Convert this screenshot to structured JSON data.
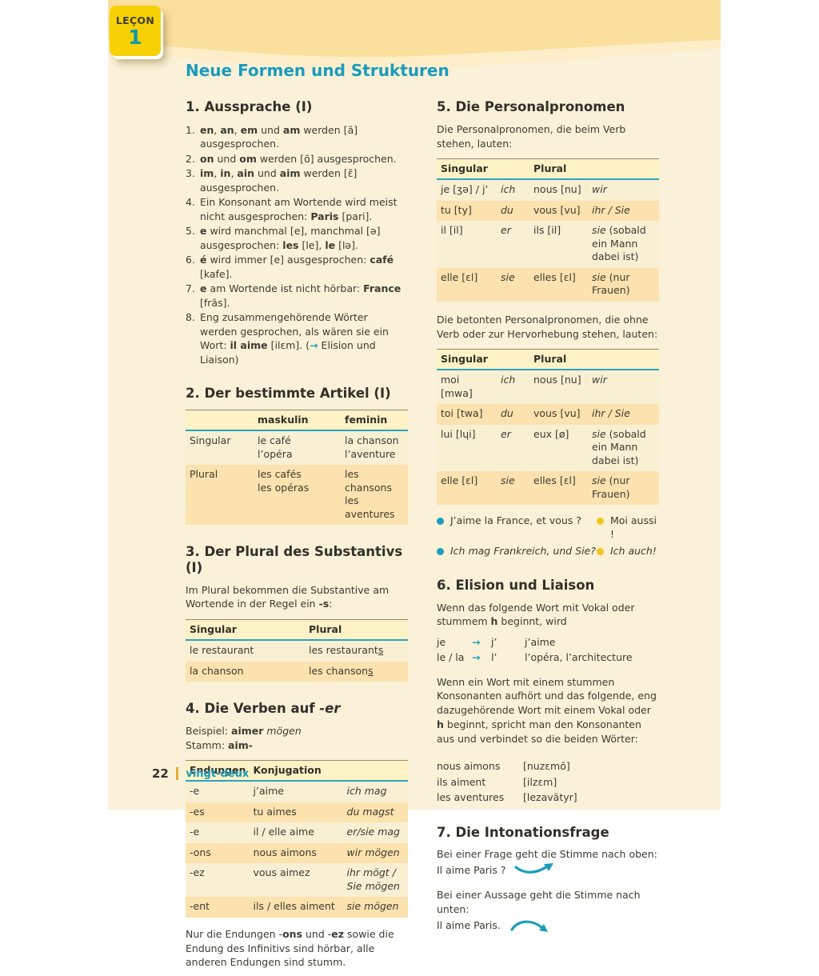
{
  "colors": {
    "page_bg": "#faf1d8",
    "band_dark": "#fbdf9d",
    "band_light": "#fdeec9",
    "tab_yellow": "#f7d104",
    "teal": "#1b9dbb",
    "table_header_bg": "#fdf2c5",
    "row_light": "#f9efd3",
    "row_dark": "#fbe2ae",
    "bullet_blue": "#1b9dbb",
    "bullet_yellow": "#f3c51c",
    "footer_bar": "#e2ae35"
  },
  "icons": {
    "right_arrow": "→"
  },
  "page": {
    "tab": {
      "label": "LEÇON",
      "number": "1"
    },
    "title": "Neue Formen und Strukturen",
    "footer": {
      "number": "22",
      "word": "vingt-deux"
    }
  },
  "s1": {
    "title": "1. Aussprache (I)",
    "items": [
      [
        {
          "t": "en",
          "s": "b"
        },
        {
          "t": ", "
        },
        {
          "t": "an",
          "s": "b"
        },
        {
          "t": ", "
        },
        {
          "t": "em",
          "s": "b"
        },
        {
          "t": " und "
        },
        {
          "t": "am",
          "s": "b"
        },
        {
          "t": " werden [ã] ausgesprochen."
        }
      ],
      [
        {
          "t": "on",
          "s": "b"
        },
        {
          "t": " und "
        },
        {
          "t": "om",
          "s": "b"
        },
        {
          "t": " werden [õ] ausgesprochen."
        }
      ],
      [
        {
          "t": "im",
          "s": "b"
        },
        {
          "t": ", "
        },
        {
          "t": "in",
          "s": "b"
        },
        {
          "t": ", "
        },
        {
          "t": "ain",
          "s": "b"
        },
        {
          "t": " und "
        },
        {
          "t": "aim",
          "s": "b"
        },
        {
          "t": " werden [ɛ̃] ausgesprochen."
        }
      ],
      [
        {
          "t": "Ein Konsonant am Wortende wird meist nicht ausgesprochen: "
        },
        {
          "t": "Paris",
          "s": "b"
        },
        {
          "t": " [pari]."
        }
      ],
      [
        {
          "t": "e",
          "s": "b"
        },
        {
          "t": " wird manchmal [e], manchmal [ə] ausgesprochen: "
        },
        {
          "t": "les",
          "s": "b"
        },
        {
          "t": " [le], "
        },
        {
          "t": "le",
          "s": "b"
        },
        {
          "t": " [lə]."
        }
      ],
      [
        {
          "t": "é",
          "s": "b"
        },
        {
          "t": " wird immer [e] ausgesprochen: "
        },
        {
          "t": "café",
          "s": "b"
        },
        {
          "t": " [kafe]."
        }
      ],
      [
        {
          "t": "e",
          "s": "b"
        },
        {
          "t": " am Wortende ist nicht hörbar: "
        },
        {
          "t": "France",
          "s": "b"
        },
        {
          "t": " [frãs]."
        }
      ],
      [
        {
          "t": "Eng zusammengehörende Wörter werden gesprochen, als wären sie ein Wort: "
        },
        {
          "t": "il aime",
          "s": "b"
        },
        {
          "t": " [ilɛm]. ("
        },
        {
          "t": "→",
          "s": "c"
        },
        {
          "t": " Elision und Liaison)"
        }
      ]
    ]
  },
  "s2": {
    "title": "2. Der bestimmte Artikel (I)",
    "table": {
      "header": [
        "",
        "maskulin",
        "feminin"
      ],
      "rows": [
        [
          "Singular",
          "le café\nl’opéra",
          "la chanson\nl’aventure"
        ],
        [
          "Plural",
          "les cafés\nles opéras",
          "les chansons\nles aventures"
        ]
      ]
    }
  },
  "s3": {
    "title": "3. Der Plural des Substantivs (I)",
    "intro": [
      {
        "t": "Im Plural bekommen die Substantive am Wortende in der Regel ein "
      },
      {
        "t": "-s",
        "s": "b"
      },
      {
        "t": ":"
      }
    ],
    "table": {
      "header": [
        "Singular",
        "Plural"
      ],
      "rows": [
        [
          "le restaurant",
          [
            {
              "t": "les restaurant"
            },
            {
              "t": "s",
              "s": "u"
            }
          ]
        ],
        [
          "la chanson",
          [
            {
              "t": "les chanson"
            },
            {
              "t": "s",
              "s": "u"
            }
          ]
        ]
      ]
    }
  },
  "s4": {
    "title": [
      {
        "t": "4. Die Verben auf "
      },
      {
        "t": "-er",
        "s": "i"
      }
    ],
    "beispiel": [
      {
        "t": "Beispiel: "
      },
      {
        "t": "aimer",
        "s": "b"
      },
      {
        "t": " "
      },
      {
        "t": "mögen",
        "s": "i"
      }
    ],
    "stamm": [
      {
        "t": "Stamm: "
      },
      {
        "t": "aim-",
        "s": "b"
      }
    ],
    "table": {
      "header": [
        "Endungen",
        "Konjugation",
        ""
      ],
      "rows": [
        [
          "-e",
          "j’aime",
          [
            {
              "t": "ich mag",
              "s": "i"
            }
          ]
        ],
        [
          "-es",
          "tu aimes",
          [
            {
              "t": "du magst",
              "s": "i"
            }
          ]
        ],
        [
          "-e",
          "il / elle aime",
          [
            {
              "t": "er/sie mag",
              "s": "i"
            }
          ]
        ],
        [
          "-ons",
          "nous aimons",
          [
            {
              "t": "wir mögen",
              "s": "i"
            }
          ]
        ],
        [
          "-ez",
          "vous aimez",
          [
            {
              "t": "ihr mögt / Sie mögen",
              "s": "i"
            }
          ]
        ],
        [
          "-ent",
          "ils / elles aiment",
          [
            {
              "t": "sie mögen",
              "s": "i"
            }
          ]
        ]
      ]
    },
    "note": [
      {
        "t": "Nur die Endungen -"
      },
      {
        "t": "ons",
        "s": "b"
      },
      {
        "t": " und -"
      },
      {
        "t": "ez",
        "s": "b"
      },
      {
        "t": " sowie die Endung des Infinitivs sind hörbar, alle anderen Endungen sind stumm."
      }
    ]
  },
  "s5": {
    "title": "5. Die Personalpronomen",
    "intro1": "Die Personalpronomen, die beim Verb stehen, lauten:",
    "table1": {
      "header": [
        "Singular",
        "",
        "Plural",
        ""
      ],
      "rows": [
        [
          "je [ʒə] / j’",
          [
            {
              "t": "ich",
              "s": "i"
            }
          ],
          "nous [nu]",
          [
            {
              "t": "wir",
              "s": "i"
            }
          ]
        ],
        [
          "tu [ty]",
          [
            {
              "t": "du",
              "s": "i"
            }
          ],
          "vous [vu]",
          [
            {
              "t": "ihr / Sie",
              "s": "i"
            }
          ]
        ],
        [
          "il [il]",
          [
            {
              "t": "er",
              "s": "i"
            }
          ],
          "ils [il]",
          [
            {
              "t": "sie",
              "s": "i"
            },
            {
              "t": " (sobald ein Mann dabei ist)"
            }
          ]
        ],
        [
          "elle [ɛl]",
          [
            {
              "t": "sie",
              "s": "i"
            }
          ],
          "elles [ɛl]",
          [
            {
              "t": "sie",
              "s": "i"
            },
            {
              "t": " (nur Frauen)"
            }
          ]
        ]
      ]
    },
    "intro2": "Die betonten Personalpronomen, die ohne Verb oder zur Hervorhebung stehen, lauten:",
    "table2": {
      "header": [
        "Singular",
        "",
        "Plural",
        ""
      ],
      "rows": [
        [
          "moi [mwa]",
          [
            {
              "t": "ich",
              "s": "i"
            }
          ],
          "nous [nu]",
          [
            {
              "t": "wir",
              "s": "i"
            }
          ]
        ],
        [
          "toi [twa]",
          [
            {
              "t": "du",
              "s": "i"
            }
          ],
          "vous [vu]",
          [
            {
              "t": "ihr / Sie",
              "s": "i"
            }
          ]
        ],
        [
          "lui [lɥi]",
          [
            {
              "t": "er",
              "s": "i"
            }
          ],
          "eux [ø]",
          [
            {
              "t": "sie",
              "s": "i"
            },
            {
              "t": " (sobald ein Mann dabei ist)"
            }
          ]
        ],
        [
          "elle [ɛl]",
          [
            {
              "t": "sie",
              "s": "i"
            }
          ],
          "elles [ɛl]",
          [
            {
              "t": "sie",
              "s": "i"
            },
            {
              "t": " (nur Frauen)"
            }
          ]
        ]
      ]
    },
    "bullets": [
      {
        "color": "blue",
        "text": [
          {
            "t": "J’aime la France, et vous ?"
          }
        ]
      },
      {
        "color": "yellow",
        "text": [
          {
            "t": "Moi aussi !"
          }
        ]
      },
      {
        "color": "blue",
        "text": [
          {
            "t": "Ich mag Frankreich, und Sie?",
            "s": "i"
          }
        ]
      },
      {
        "color": "yellow",
        "text": [
          {
            "t": "Ich auch!",
            "s": "i"
          }
        ]
      }
    ]
  },
  "s6": {
    "title": "6. Elision und Liaison",
    "p1": [
      {
        "t": "Wenn das folgende Wort mit Vokal oder stummem "
      },
      {
        "t": "h",
        "s": "b"
      },
      {
        "t": " beginnt, wird"
      }
    ],
    "elision": [
      {
        "from": "je",
        "to": "j’",
        "example": "j’aime"
      },
      {
        "from": "le / la",
        "to": "l’",
        "example": "l’opéra, l’architecture"
      }
    ],
    "p2": [
      {
        "t": "Wenn ein Wort mit einem stummen Konsonanten aufhört und das folgende, eng dazugehörende Wort mit einem Vokal oder "
      },
      {
        "t": "h",
        "s": "b"
      },
      {
        "t": " beginnt, spricht man den Konsonanten aus und verbindet so die beiden Wörter:"
      }
    ],
    "liaison": [
      {
        "phrase": "nous aimons",
        "ipa": "[nuzɛmõ]"
      },
      {
        "phrase": "ils aiment",
        "ipa": "[ilzɛm]"
      },
      {
        "phrase": "les aventures",
        "ipa": "[lezavãtyr]"
      }
    ]
  },
  "s7": {
    "title": "7. Die Intonationsfrage",
    "q_label": "Bei einer Frage geht die Stimme nach oben:",
    "q_example": "Il aime Paris ?",
    "a_label": "Bei einer Aussage geht die Stimme nach unten:",
    "a_example": "Il aime Paris."
  }
}
